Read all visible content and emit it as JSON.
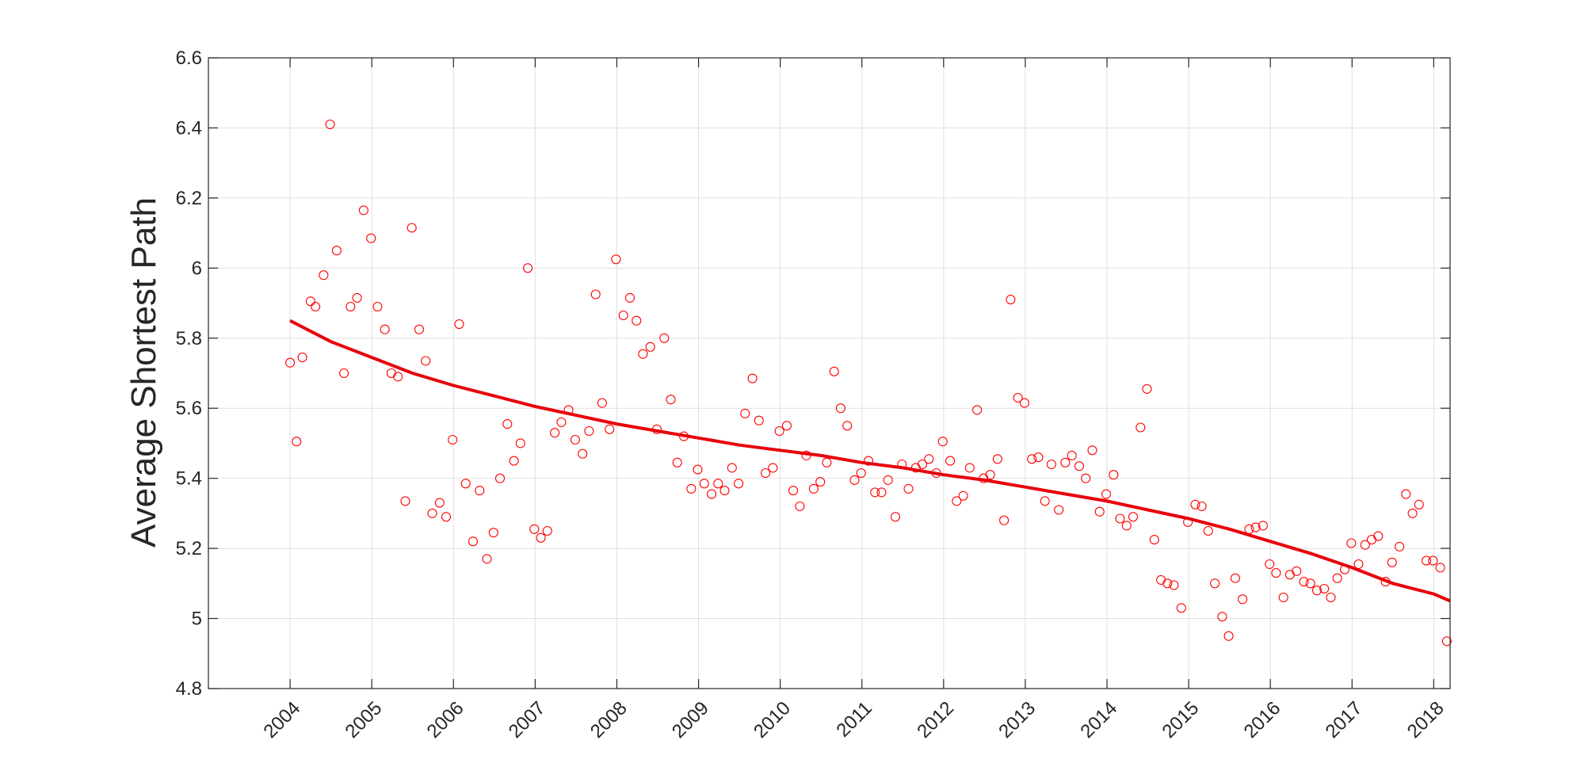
{
  "chart_data": {
    "type": "scatter",
    "title": "",
    "xlabel": "",
    "ylabel": "Average Shortest Path",
    "xlim": [
      2003,
      2018.2
    ],
    "ylim": [
      4.8,
      6.6
    ],
    "grid": true,
    "x_ticks": [
      "2004",
      "2005",
      "2006",
      "2007",
      "2008",
      "2009",
      "2010",
      "2011",
      "2012",
      "2013",
      "2014",
      "2015",
      "2016",
      "2017",
      "2018"
    ],
    "y_ticks": [
      "4.8",
      "5",
      "5.2",
      "5.4",
      "5.6",
      "5.8",
      "6",
      "6.2",
      "6.4",
      "6.6"
    ],
    "colors": {
      "marker": "#ff0000",
      "fit": "#e8000b",
      "grid": "#dfdfdf",
      "axis": "#262626"
    },
    "series": [
      {
        "type": "scatter",
        "x": [
          2004.0,
          2004.08,
          2004.15,
          2004.25,
          2004.31,
          2004.41,
          2004.49,
          2004.57,
          2004.66,
          2004.74,
          2004.82,
          2004.9,
          2004.99,
          2005.07,
          2005.16,
          2005.24,
          2005.32,
          2005.41,
          2005.49,
          2005.58,
          2005.66,
          2005.74,
          2005.83,
          2005.91,
          2005.99,
          2006.07,
          2006.15,
          2006.24,
          2006.32,
          2006.41,
          2006.49,
          2006.57,
          2006.66,
          2006.74,
          2006.82,
          2006.91,
          2006.99,
          2007.07,
          2007.15,
          2007.24,
          2007.32,
          2007.41,
          2007.49,
          2007.58,
          2007.66,
          2007.74,
          2007.82,
          2007.91,
          2007.99,
          2008.08,
          2008.16,
          2008.24,
          2008.32,
          2008.41,
          2008.49,
          2008.58,
          2008.66,
          2008.74,
          2008.82,
          2008.91,
          2008.99,
          2009.07,
          2009.16,
          2009.24,
          2009.32,
          2009.41,
          2009.49,
          2009.57,
          2009.66,
          2009.74,
          2009.82,
          2009.91,
          2009.99,
          2010.08,
          2010.16,
          2010.24,
          2010.32,
          2010.41,
          2010.49,
          2010.57,
          2010.66,
          2010.74,
          2010.82,
          2010.91,
          2010.99,
          2011.08,
          2011.16,
          2011.24,
          2011.32,
          2011.41,
          2011.49,
          2011.57,
          2011.66,
          2011.74,
          2011.82,
          2011.91,
          2011.99,
          2012.08,
          2012.16,
          2012.24,
          2012.32,
          2012.41,
          2012.49,
          2012.57,
          2012.66,
          2012.74,
          2012.82,
          2012.91,
          2012.99,
          2013.08,
          2013.16,
          2013.24,
          2013.32,
          2013.41,
          2013.49,
          2013.57,
          2013.66,
          2013.74,
          2013.82,
          2013.91,
          2013.99,
          2014.08,
          2014.16,
          2014.24,
          2014.32,
          2014.41,
          2014.49,
          2014.58,
          2014.66,
          2014.74,
          2014.82,
          2014.91,
          2014.99,
          2015.08,
          2015.16,
          2015.24,
          2015.32,
          2015.41,
          2015.49,
          2015.57,
          2015.66,
          2015.74,
          2015.82,
          2015.91,
          2015.99,
          2016.07,
          2016.16,
          2016.24,
          2016.32,
          2016.41,
          2016.49,
          2016.57,
          2016.66,
          2016.74,
          2016.82,
          2016.91,
          2016.99,
          2017.08,
          2017.16,
          2017.24,
          2017.32,
          2017.41,
          2017.49,
          2017.58,
          2017.66,
          2017.74,
          2017.82,
          2017.91,
          2017.99,
          2018.08,
          2018.16
        ],
        "y": [
          5.73,
          5.505,
          5.745,
          5.905,
          5.89,
          5.98,
          6.41,
          6.05,
          5.7,
          5.89,
          5.915,
          6.165,
          6.085,
          5.89,
          5.825,
          5.7,
          5.69,
          5.335,
          6.115,
          5.825,
          5.735,
          5.3,
          5.33,
          5.29,
          5.51,
          5.84,
          5.385,
          5.22,
          5.365,
          5.17,
          5.245,
          5.4,
          5.555,
          5.45,
          5.5,
          6.0,
          5.255,
          5.23,
          5.25,
          5.53,
          5.56,
          5.595,
          5.51,
          5.47,
          5.535,
          5.925,
          5.615,
          5.54,
          6.025,
          5.865,
          5.915,
          5.85,
          5.755,
          5.775,
          5.54,
          5.8,
          5.625,
          5.445,
          5.52,
          5.37,
          5.425,
          5.385,
          5.355,
          5.385,
          5.365,
          5.43,
          5.385,
          5.585,
          5.685,
          5.565,
          5.415,
          5.43,
          5.535,
          5.55,
          5.365,
          5.32,
          5.465,
          5.37,
          5.39,
          5.445,
          5.705,
          5.6,
          5.55,
          5.395,
          5.415,
          5.45,
          5.36,
          5.36,
          5.395,
          5.29,
          5.44,
          5.37,
          5.43,
          5.44,
          5.455,
          5.415,
          5.505,
          5.45,
          5.335,
          5.35,
          5.43,
          5.595,
          5.4,
          5.41,
          5.455,
          5.28,
          5.91,
          5.63,
          5.615,
          5.455,
          5.46,
          5.335,
          5.44,
          5.31,
          5.445,
          5.465,
          5.435,
          5.4,
          5.48,
          5.305,
          5.355,
          5.41,
          5.285,
          5.265,
          5.29,
          5.545,
          5.655,
          5.225,
          5.11,
          5.1,
          5.095,
          5.03,
          5.275,
          5.325,
          5.32,
          5.25,
          5.1,
          5.005,
          4.95,
          5.115,
          5.055,
          5.255,
          5.26,
          5.265,
          5.155,
          5.13,
          5.06,
          5.125,
          5.135,
          5.105,
          5.1,
          5.08,
          5.085,
          5.06,
          5.115,
          5.14,
          5.215,
          5.155,
          5.21,
          5.225,
          5.235,
          5.105,
          5.16,
          5.205,
          5.355,
          5.3,
          5.325,
          5.165,
          5.165,
          5.145,
          4.935
        ]
      },
      {
        "type": "line",
        "x": [
          2004.0,
          2004.5,
          2005.0,
          2005.5,
          2006.0,
          2006.5,
          2007.0,
          2007.5,
          2008.0,
          2008.5,
          2009.0,
          2009.5,
          2010.0,
          2010.5,
          2011.0,
          2011.5,
          2012.0,
          2012.5,
          2013.0,
          2013.5,
          2014.0,
          2014.5,
          2015.0,
          2015.5,
          2016.0,
          2016.5,
          2017.0,
          2017.5,
          2018.0,
          2018.2
        ],
        "y": [
          5.85,
          5.79,
          5.745,
          5.7,
          5.665,
          5.635,
          5.605,
          5.58,
          5.555,
          5.535,
          5.515,
          5.495,
          5.48,
          5.465,
          5.445,
          5.43,
          5.41,
          5.395,
          5.375,
          5.355,
          5.335,
          5.31,
          5.285,
          5.255,
          5.22,
          5.185,
          5.145,
          5.1,
          5.07,
          5.05
        ]
      }
    ]
  }
}
